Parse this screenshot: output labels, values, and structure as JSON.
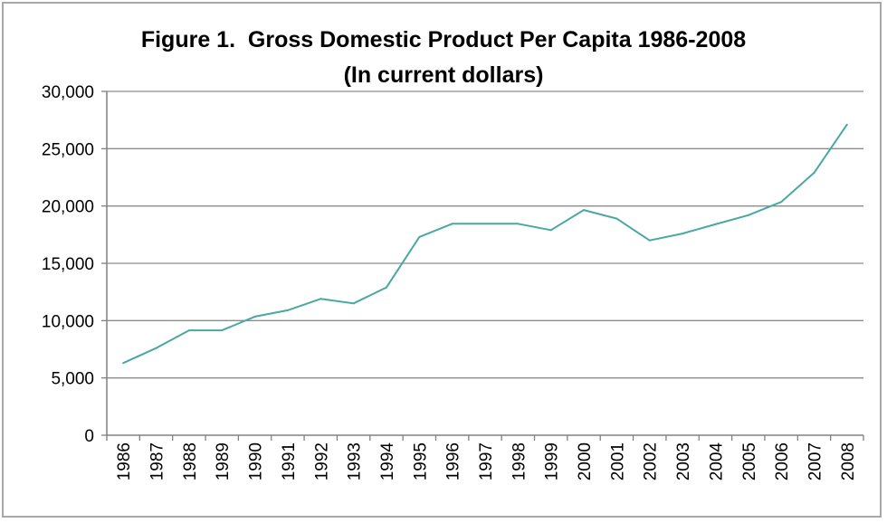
{
  "chart_data": {
    "type": "line",
    "title": "Figure 1.  Gross Domestic Product Per Capita 1986-2008",
    "subtitle": "(In current dollars)",
    "xlabel": "",
    "ylabel": "",
    "categories": [
      "1986",
      "1987",
      "1988",
      "1989",
      "1990",
      "1991",
      "1992",
      "1993",
      "1994",
      "1995",
      "1996",
      "1997",
      "1998",
      "1999",
      "2000",
      "2001",
      "2002",
      "2003",
      "2004",
      "2005",
      "2006",
      "2007",
      "2008"
    ],
    "series": [
      {
        "values": [
          6300,
          7600,
          9150,
          9150,
          10350,
          10900,
          11900,
          11500,
          12900,
          17300,
          18450,
          18450,
          18450,
          17900,
          19650,
          18900,
          17000,
          17600,
          18400,
          19200,
          20350,
          22900,
          27100
        ],
        "color": "#4aa8a4"
      }
    ],
    "ylim": [
      0,
      30000
    ],
    "yticks": [
      0,
      5000,
      10000,
      15000,
      20000,
      25000,
      30000
    ],
    "ytick_labels": [
      "0",
      "5,000",
      "10,000",
      "15,000",
      "20,000",
      "25,000",
      "30,000"
    ],
    "grid": true,
    "legend": "none"
  }
}
